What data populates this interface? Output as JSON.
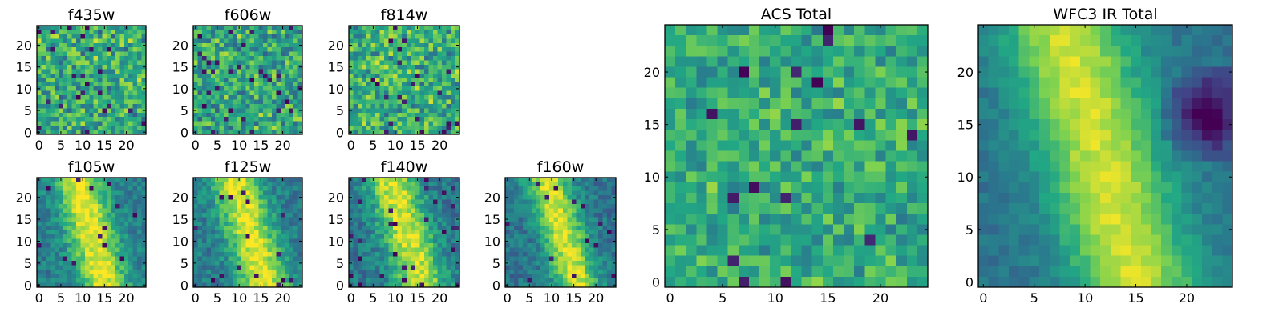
{
  "figure": {
    "background": "#ffffff",
    "colormap": "viridis",
    "colormap_stops": [
      "#440154",
      "#414487",
      "#2a788e",
      "#22a884",
      "#7ad151",
      "#fde725"
    ]
  },
  "chart_data": [
    {
      "id": "f435w",
      "type": "heatmap",
      "title": "f435w",
      "grid_size": 25,
      "xlim": [
        0,
        24
      ],
      "ylim": [
        0,
        24
      ],
      "xticks": [
        0,
        5,
        10,
        15,
        20
      ],
      "yticks": [
        0,
        5,
        10,
        15,
        20
      ],
      "pattern": "noise",
      "seed": 11,
      "brightness": 0.62,
      "noise": 0.22,
      "dark_cells": 0.04
    },
    {
      "id": "f606w",
      "type": "heatmap",
      "title": "f606w",
      "grid_size": 25,
      "xlim": [
        0,
        24
      ],
      "ylim": [
        0,
        24
      ],
      "xticks": [
        0,
        5,
        10,
        15,
        20
      ],
      "yticks": [
        0,
        5,
        10,
        15,
        20
      ],
      "pattern": "noise",
      "seed": 23,
      "brightness": 0.6,
      "noise": 0.22,
      "dark_cells": 0.05
    },
    {
      "id": "f814w",
      "type": "heatmap",
      "title": "f814w",
      "grid_size": 25,
      "xlim": [
        0,
        24
      ],
      "ylim": [
        0,
        24
      ],
      "xticks": [
        0,
        5,
        10,
        15,
        20
      ],
      "yticks": [
        0,
        5,
        10,
        15,
        20
      ],
      "pattern": "noise",
      "seed": 37,
      "brightness": 0.64,
      "noise": 0.22,
      "dark_cells": 0.05
    },
    {
      "id": "f105w",
      "type": "heatmap",
      "title": "f105w",
      "grid_size": 25,
      "xlim": [
        0,
        24
      ],
      "ylim": [
        0,
        24
      ],
      "xticks": [
        0,
        5,
        10,
        15,
        20
      ],
      "yticks": [
        0,
        5,
        10,
        15,
        20
      ],
      "pattern": "diagonal_band",
      "band": {
        "x_at_top": 9,
        "x_at_bottom": 15,
        "width": 5.5
      },
      "seed": 41,
      "brightness": 0.42,
      "noise": 0.12,
      "dark_cells": 0.02
    },
    {
      "id": "f125w",
      "type": "heatmap",
      "title": "f125w",
      "grid_size": 25,
      "xlim": [
        0,
        24
      ],
      "ylim": [
        0,
        24
      ],
      "xticks": [
        0,
        5,
        10,
        15,
        20
      ],
      "yticks": [
        0,
        5,
        10,
        15,
        20
      ],
      "pattern": "diagonal_band",
      "band": {
        "x_at_top": 9,
        "x_at_bottom": 16,
        "width": 5.5
      },
      "seed": 53,
      "brightness": 0.42,
      "noise": 0.13,
      "dark_cells": 0.03
    },
    {
      "id": "f140w",
      "type": "heatmap",
      "title": "f140w",
      "grid_size": 25,
      "xlim": [
        0,
        24
      ],
      "ylim": [
        0,
        24
      ],
      "xticks": [
        0,
        5,
        10,
        15,
        20
      ],
      "yticks": [
        0,
        5,
        10,
        15,
        20
      ],
      "pattern": "diagonal_band",
      "band": {
        "x_at_top": 9,
        "x_at_bottom": 16,
        "width": 5.5
      },
      "seed": 67,
      "brightness": 0.4,
      "noise": 0.13,
      "dark_cells": 0.04
    },
    {
      "id": "f160w",
      "type": "heatmap",
      "title": "f160w",
      "grid_size": 25,
      "xlim": [
        0,
        24
      ],
      "ylim": [
        0,
        24
      ],
      "xticks": [
        0,
        5,
        10,
        15,
        20
      ],
      "yticks": [
        0,
        5,
        10,
        15,
        20
      ],
      "pattern": "diagonal_band",
      "band": {
        "x_at_top": 9,
        "x_at_bottom": 16,
        "width": 5
      },
      "seed": 71,
      "brightness": 0.38,
      "noise": 0.12,
      "dark_cells": 0.02
    },
    {
      "id": "acs_total",
      "type": "heatmap",
      "title": "ACS Total",
      "grid_size": 25,
      "xlim": [
        0,
        24
      ],
      "ylim": [
        0,
        24
      ],
      "xticks": [
        0,
        5,
        10,
        15,
        20
      ],
      "yticks": [
        0,
        5,
        10,
        15,
        20
      ],
      "pattern": "noise",
      "seed": 83,
      "brightness": 0.62,
      "noise": 0.16,
      "dark_cells": 0.025
    },
    {
      "id": "wfc3_ir_total",
      "type": "heatmap",
      "title": "WFC3 IR Total",
      "grid_size": 25,
      "xlim": [
        0,
        24
      ],
      "ylim": [
        0,
        24
      ],
      "xticks": [
        0,
        5,
        10,
        15,
        20
      ],
      "yticks": [
        0,
        5,
        10,
        15,
        20
      ],
      "pattern": "diagonal_band",
      "band": {
        "x_at_top": 8,
        "x_at_bottom": 15,
        "width": 6
      },
      "seed": 97,
      "brightness": 0.38,
      "noise": 0.06,
      "dark_cells": 0.0,
      "dark_patch": {
        "x": 22,
        "y": 16,
        "r": 2.5
      }
    }
  ]
}
